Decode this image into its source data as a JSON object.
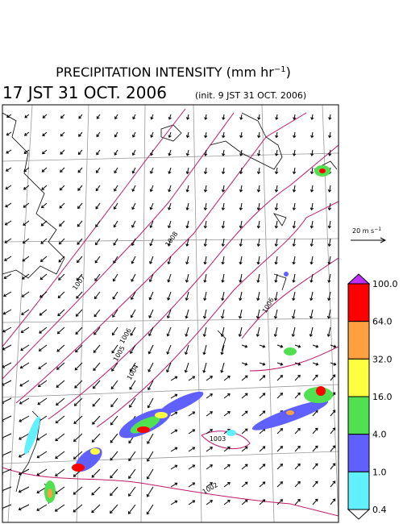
{
  "header": {
    "title": "PRECIPITATION INTENSITY (mm hr",
    "title_exponent": "−1",
    "title_close": ")",
    "valid_time": "17 JST 31 OCT. 2006",
    "init_time": "(init. 9 JST 31 OCT. 2006)"
  },
  "wind_scale": {
    "label": "20 m s",
    "exponent": "−1"
  },
  "colorbar": {
    "labels": [
      "100.0",
      "64.0",
      "32.0",
      "16.0",
      "4.0",
      "1.0",
      "0.4"
    ],
    "colors": [
      "#ff0000",
      "#ffa040",
      "#ffff40",
      "#50e050",
      "#6060ff",
      "#60f0ff"
    ],
    "over_color": "#c030ff",
    "under_color": "#ffffff"
  },
  "isobars": {
    "labels": [
      "1008",
      "1007",
      "1006",
      "1005",
      "1004",
      "1006",
      "1003",
      "1002"
    ]
  }
}
